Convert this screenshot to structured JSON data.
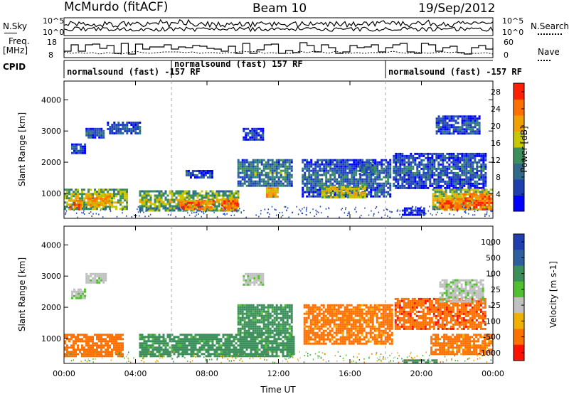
{
  "header": {
    "station": "McMurdo (fitACF)",
    "beam": "Beam 10",
    "date": "19/Sep/2012"
  },
  "side_labels": {
    "nsky": "N.Sky",
    "freq_line1": "Freq.",
    "freq_line2": "[MHz]",
    "cpid": "CPID",
    "nsearch": "N.Search",
    "nave": "Nave"
  },
  "strip_ticks": {
    "noise_left_top": "10^5",
    "noise_left_bottom": "10^0",
    "noise_right_top": "10^5",
    "noise_right_bottom": "10^0",
    "freq_left_top": "18",
    "freq_left_bottom": "8",
    "nave_right_top": "60",
    "nave_right_bottom": "0"
  },
  "cpid_segments": [
    {
      "label": "normalsound (fast) -157 RF",
      "start_hour": 0,
      "end_hour": 6
    },
    {
      "label": "normalsound (fast) 157 RF",
      "start_hour": 6,
      "end_hour": 18
    },
    {
      "label": "normalsound (fast) -157 RF",
      "start_hour": 18,
      "end_hour": 24
    }
  ],
  "chart_data": [
    {
      "type": "heatmap",
      "panel": "power",
      "xlabel": "Time UT",
      "ylabel": "Slant Range [km]",
      "x_ticks": [
        "00:00",
        "04:00",
        "08:00",
        "12:00",
        "16:00",
        "20:00",
        "00:00"
      ],
      "xlim_hours": [
        0,
        24
      ],
      "y_ticks": [
        "1000",
        "2000",
        "3000",
        "4000"
      ],
      "ylim": [
        200,
        4600
      ],
      "colorbar": {
        "label": "Power [dB]",
        "ticks": [
          "4",
          "8",
          "12",
          "16",
          "20",
          "24",
          "28"
        ],
        "range": [
          0,
          30
        ]
      },
      "echo_regions": [
        {
          "t": [
            0.4,
            1.2
          ],
          "r": [
            2300,
            2600
          ],
          "v": 8
        },
        {
          "t": [
            1.2,
            2.2
          ],
          "r": [
            2800,
            3100
          ],
          "v": 9
        },
        {
          "t": [
            2.4,
            4.3
          ],
          "r": [
            2900,
            3300
          ],
          "v": 9
        },
        {
          "t": [
            0.0,
            3.5
          ],
          "r": [
            480,
            1150
          ],
          "v": 18
        },
        {
          "t": [
            0.3,
            1.0
          ],
          "r": [
            500,
            800
          ],
          "v": 28
        },
        {
          "t": [
            1.3,
            2.6
          ],
          "r": [
            650,
            1000
          ],
          "v": 24
        },
        {
          "t": [
            4.2,
            9.8
          ],
          "r": [
            450,
            1100
          ],
          "v": 17
        },
        {
          "t": [
            6.4,
            8.4
          ],
          "r": [
            500,
            800
          ],
          "v": 28
        },
        {
          "t": [
            8.8,
            9.7
          ],
          "r": [
            500,
            850
          ],
          "v": 28
        },
        {
          "t": [
            6.8,
            8.3
          ],
          "r": [
            1500,
            1750
          ],
          "v": 8
        },
        {
          "t": [
            9.7,
            12.8
          ],
          "r": [
            1250,
            2100
          ],
          "v": 12
        },
        {
          "t": [
            10.0,
            11.1
          ],
          "r": [
            2700,
            3100
          ],
          "v": 8
        },
        {
          "t": [
            11.3,
            11.9
          ],
          "r": [
            900,
            1200
          ],
          "v": 24
        },
        {
          "t": [
            13.3,
            18.2
          ],
          "r": [
            900,
            2100
          ],
          "v": 10
        },
        {
          "t": [
            14.4,
            16.8
          ],
          "r": [
            900,
            1250
          ],
          "v": 20
        },
        {
          "t": [
            16.5,
            17.4
          ],
          "r": [
            1600,
            2000
          ],
          "v": 11
        },
        {
          "t": [
            18.4,
            23.6
          ],
          "r": [
            1200,
            2300
          ],
          "v": 9
        },
        {
          "t": [
            18.9,
            20.2
          ],
          "r": [
            300,
            550
          ],
          "v": 5
        },
        {
          "t": [
            20.6,
            24.0
          ],
          "r": [
            480,
            1150
          ],
          "v": 20
        },
        {
          "t": [
            21.0,
            22.3
          ],
          "r": [
            500,
            850
          ],
          "v": 28
        },
        {
          "t": [
            22.3,
            24.0
          ],
          "r": [
            500,
            1000
          ],
          "v": 28
        },
        {
          "t": [
            20.8,
            23.3
          ],
          "r": [
            2900,
            3500
          ],
          "v": 9
        }
      ]
    },
    {
      "type": "heatmap",
      "panel": "velocity",
      "xlabel": "Time UT",
      "ylabel": "Slant Range [km]",
      "x_ticks": [
        "00:00",
        "04:00",
        "08:00",
        "12:00",
        "16:00",
        "20:00",
        "00:00"
      ],
      "xlim_hours": [
        0,
        24
      ],
      "y_ticks": [
        "1000",
        "2000",
        "3000",
        "4000"
      ],
      "ylim": [
        200,
        4600
      ],
      "colorbar": {
        "label": "Velocity [m s-1]",
        "ticks": [
          "1000",
          "500",
          "100",
          "25",
          "-25",
          "-100",
          "-500",
          "-1000"
        ],
        "range": [
          -1000,
          1000
        ]
      },
      "echo_regions": [
        {
          "t": [
            0.0,
            3.3
          ],
          "r": [
            450,
            1150
          ],
          "v": -200
        },
        {
          "t": [
            1.2,
            2.3
          ],
          "r": [
            2800,
            3100
          ],
          "v": 10
        },
        {
          "t": [
            0.4,
            1.2
          ],
          "r": [
            2300,
            2600
          ],
          "v": 10
        },
        {
          "t": [
            4.2,
            12.8
          ],
          "r": [
            450,
            1150
          ],
          "v": 150
        },
        {
          "t": [
            9.7,
            12.8
          ],
          "r": [
            1200,
            2100
          ],
          "v": 150
        },
        {
          "t": [
            10.0,
            11.1
          ],
          "r": [
            2700,
            3100
          ],
          "v": 10
        },
        {
          "t": [
            13.4,
            18.3
          ],
          "r": [
            850,
            2100
          ],
          "v": -150
        },
        {
          "t": [
            18.5,
            23.6
          ],
          "r": [
            1300,
            2300
          ],
          "v": -400
        },
        {
          "t": [
            20.5,
            24.0
          ],
          "r": [
            480,
            1150
          ],
          "v": -150
        },
        {
          "t": [
            19.0,
            20.8
          ],
          "r": [
            200,
            330
          ],
          "v": 300
        },
        {
          "t": [
            21.0,
            23.5
          ],
          "r": [
            2200,
            2900
          ],
          "v": 10
        }
      ]
    }
  ]
}
